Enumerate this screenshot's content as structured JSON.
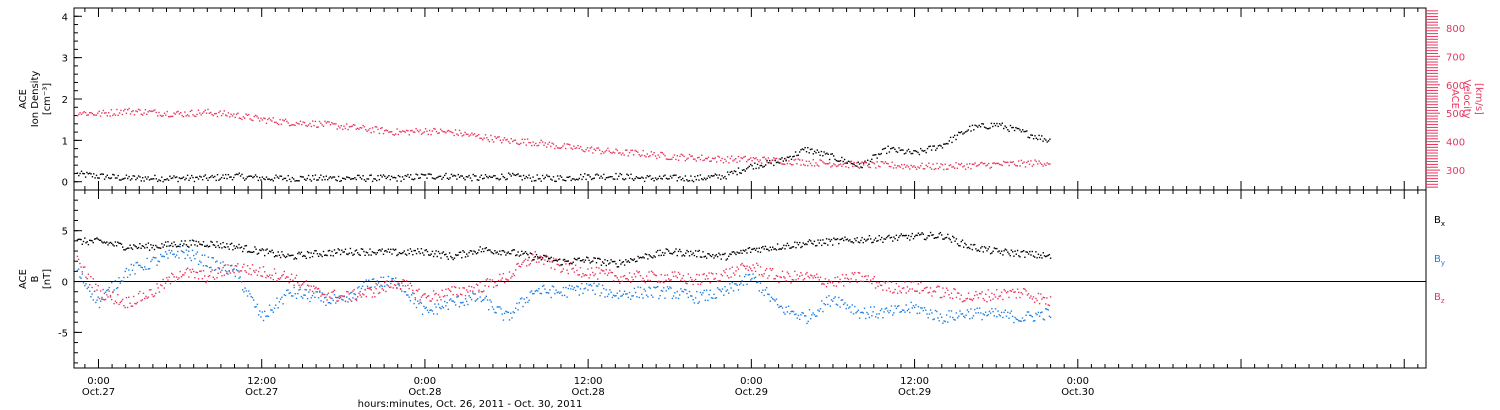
{
  "colors": {
    "density": "#000000",
    "velocity": "#e8365f",
    "bx": "#000000",
    "by": "#1f7fe0",
    "bz": "#e8365f",
    "axis": "#000000"
  },
  "time_axis": {
    "xlabel": "hours:minutes, Oct. 26, 2011 - Oct. 30, 2011",
    "range_hours": [
      -0.9,
      48.8
    ],
    "ticks": [
      {
        "h": 0,
        "time": "0:00",
        "date": "Oct.27"
      },
      {
        "h": 6,
        "time": "12:00",
        "date": "Oct.27"
      },
      {
        "h": 12,
        "time": "0:00",
        "date": "Oct.28"
      },
      {
        "h": 18,
        "time": "12:00",
        "date": "Oct.28"
      },
      {
        "h": 24,
        "time": "0:00",
        "date": "Oct.29"
      },
      {
        "h": 30,
        "time": "12:00",
        "date": "Oct.29"
      },
      {
        "h": 36,
        "time": "0:00",
        "date": "Oct.30"
      }
    ]
  },
  "chart_data": [
    {
      "type": "scatter",
      "panel": "top",
      "ylabel_left": [
        "ACE",
        "Ion Density",
        "[cm⁻³]"
      ],
      "ylim_left": [
        -0.2,
        4.2
      ],
      "yticks_left": [
        "0",
        "1",
        "2",
        "3",
        "4"
      ],
      "ylabel_right": [
        "ACE",
        "Velocity",
        "[km/s]"
      ],
      "ylim_right": [
        230,
        870
      ],
      "yticks_right": [
        "300",
        "400",
        "500",
        "600",
        "700",
        "800"
      ],
      "series": [
        {
          "name": "Ion Density",
          "axis": "left",
          "x": [
            -0.8,
            0,
            1,
            2,
            3,
            4,
            5,
            6,
            7,
            8,
            9,
            10,
            11,
            12,
            13,
            14,
            15,
            16,
            17,
            18,
            19,
            20,
            21,
            22,
            23,
            24,
            25,
            26,
            27,
            28,
            29,
            30,
            31,
            32,
            33,
            34,
            35
          ],
          "y": [
            0.2,
            0.15,
            0.1,
            0.1,
            0.1,
            0.1,
            0.15,
            0.1,
            0.1,
            0.1,
            0.1,
            0.1,
            0.1,
            0.15,
            0.15,
            0.1,
            0.15,
            0.1,
            0.1,
            0.15,
            0.15,
            0.1,
            0.1,
            0.1,
            0.15,
            0.4,
            0.5,
            0.8,
            0.6,
            0.4,
            0.8,
            0.7,
            0.9,
            1.3,
            1.4,
            1.2,
            1.0
          ]
        },
        {
          "name": "Velocity",
          "axis": "right",
          "x": [
            -0.8,
            0,
            1,
            2,
            3,
            4,
            5,
            6,
            7,
            8,
            9,
            10,
            11,
            12,
            13,
            14,
            15,
            16,
            17,
            18,
            19,
            20,
            21,
            22,
            23,
            24,
            25,
            26,
            27,
            28,
            29,
            30,
            31,
            32,
            33,
            34,
            35
          ],
          "y": [
            505,
            500,
            510,
            505,
            500,
            505,
            495,
            480,
            470,
            465,
            455,
            445,
            435,
            440,
            435,
            420,
            405,
            400,
            385,
            375,
            365,
            360,
            350,
            345,
            340,
            340,
            335,
            330,
            325,
            320,
            320,
            315,
            315,
            318,
            322,
            325,
            330
          ]
        }
      ]
    },
    {
      "type": "scatter",
      "panel": "bottom",
      "ylabel": [
        "ACE",
        "B",
        "[nT]"
      ],
      "ylim": [
        -8.5,
        9
      ],
      "yticks": [
        "-5",
        "0",
        "5"
      ],
      "series": [
        {
          "name": "Bx",
          "label_main": "B",
          "label_sub": "x",
          "x": [
            -0.8,
            0,
            1,
            2,
            3,
            4,
            5,
            6,
            7,
            8,
            9,
            10,
            11,
            12,
            13,
            14,
            15,
            16,
            17,
            18,
            19,
            20,
            21,
            22,
            23,
            24,
            25,
            26,
            27,
            28,
            29,
            30,
            31,
            32,
            33,
            34,
            35
          ],
          "y": [
            4,
            4,
            3.5,
            3.5,
            3.8,
            3.8,
            3.5,
            3.0,
            2.5,
            2.8,
            3.0,
            3.0,
            2.9,
            3.0,
            2.5,
            3.2,
            3.0,
            2.5,
            2.0,
            2.2,
            1.8,
            2.5,
            3.0,
            2.8,
            2.5,
            3.2,
            3.5,
            3.8,
            4.0,
            4.2,
            4.3,
            4.5,
            4.6,
            3.5,
            3.0,
            2.8,
            2.5
          ]
        },
        {
          "name": "By",
          "label_main": "B",
          "label_sub": "y",
          "x": [
            -0.8,
            0,
            1,
            2,
            3,
            4,
            5,
            6,
            7,
            8,
            9,
            10,
            11,
            12,
            13,
            14,
            15,
            16,
            17,
            18,
            19,
            20,
            21,
            22,
            23,
            24,
            25,
            26,
            27,
            28,
            29,
            30,
            31,
            32,
            33,
            34,
            35
          ],
          "y": [
            1,
            -2,
            1,
            2,
            3,
            2,
            1,
            -3.5,
            -1,
            -1.5,
            -2,
            0,
            0,
            -3,
            -2,
            -1.5,
            -3.5,
            -0.8,
            -1.0,
            -0.5,
            -1.2,
            -1.0,
            -1.0,
            -1.5,
            -1.0,
            0.5,
            -2.5,
            -3.5,
            -1.5,
            -3.0,
            -3.0,
            -2.5,
            -3.5,
            -3.0,
            -3.2,
            -3.5,
            -3.0
          ]
        },
        {
          "name": "Bz",
          "label_main": "B",
          "label_sub": "z",
          "x": [
            -0.8,
            0,
            1,
            2,
            3,
            4,
            5,
            6,
            7,
            8,
            9,
            10,
            11,
            12,
            13,
            14,
            15,
            16,
            17,
            18,
            19,
            20,
            21,
            22,
            23,
            24,
            25,
            26,
            27,
            28,
            29,
            30,
            31,
            32,
            33,
            34,
            35
          ],
          "y": [
            2,
            -1,
            -2,
            -1,
            1,
            0.5,
            1.5,
            1,
            0.5,
            -1,
            -1.5,
            -1,
            0,
            -1.5,
            -1,
            -0.5,
            0.5,
            2.5,
            1.5,
            1.0,
            0.5,
            0.5,
            0.5,
            0.2,
            0.8,
            1.5,
            0.5,
            0.5,
            0.0,
            0.5,
            -0.5,
            -0.5,
            -1.0,
            -1.5,
            -1.2,
            -1.0,
            -2.0
          ]
        }
      ]
    }
  ]
}
